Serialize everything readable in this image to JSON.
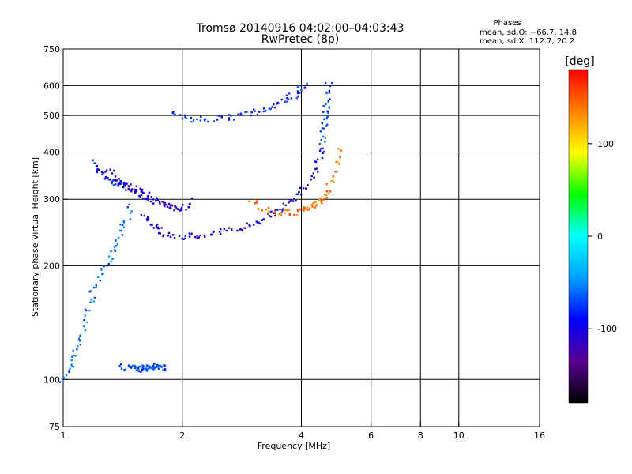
{
  "header": {
    "title": "Tromsø 20140916 04:02:00–04:03:43",
    "subtitle": "RwPretec (8p)",
    "phases_title": "Phases",
    "phases_o": "mean, sd,O: −66.7, 14.8",
    "phases_x": "mean, sd,X: 112.7, 20.2"
  },
  "chart_data": {
    "type": "scatter",
    "xlabel": "Frequency [MHz]",
    "ylabel": "Stationary phase Virtual Height [km]",
    "xscale": "log",
    "yscale": "log",
    "xlim": [
      1,
      16
    ],
    "ylim": [
      75,
      750
    ],
    "x_ticks": [
      1,
      2,
      4,
      6,
      8,
      10,
      16
    ],
    "y_ticks": [
      75,
      100,
      200,
      300,
      400,
      500,
      600,
      750
    ],
    "grid_x": [
      2,
      4,
      6,
      8,
      10
    ],
    "grid_y": [
      100,
      200,
      300,
      400,
      500,
      600
    ],
    "grid": true,
    "colorbar": {
      "label": "[deg]",
      "range": [
        -180,
        180
      ],
      "ticks": [
        100,
        0,
        -100
      ],
      "colors": [
        "#000000",
        "#5a0090",
        "#0000ff",
        "#00a0ff",
        "#00ffff",
        "#00ff00",
        "#ffff00",
        "#ff8000",
        "#ff0000"
      ]
    },
    "traces": [
      {
        "x": [
          1.0,
          1.05,
          1.1,
          1.15,
          1.2,
          1.28,
          1.35,
          1.42,
          1.5
        ],
        "y": [
          100,
          110,
          125,
          150,
          175,
          200,
          225,
          255,
          290
        ],
        "phase": -60
      },
      {
        "x": [
          1.2,
          1.25,
          1.3,
          1.38,
          1.45,
          1.55,
          1.65
        ],
        "y": [
          380,
          350,
          340,
          330,
          320,
          310,
          300
        ],
        "phase": -90
      },
      {
        "x": [
          1.6,
          1.7,
          1.8,
          2.0,
          2.2,
          2.5,
          2.8,
          3.1,
          3.4,
          3.7,
          4.0,
          4.3,
          4.5
        ],
        "y": [
          270,
          255,
          245,
          238,
          240,
          245,
          252,
          262,
          275,
          292,
          315,
          350,
          400
        ],
        "phase": -100
      },
      {
        "x": [
          1.9,
          2.1,
          2.4,
          2.7,
          3.0,
          3.3,
          3.6,
          3.9,
          4.1
        ],
        "y": [
          500,
          490,
          490,
          495,
          505,
          525,
          545,
          570,
          600
        ],
        "phase": -80
      },
      {
        "x": [
          4.5,
          4.55,
          4.6,
          4.65,
          4.7
        ],
        "y": [
          400,
          450,
          500,
          550,
          620
        ],
        "phase": -70
      },
      {
        "x": [
          3.0,
          3.3,
          3.6,
          3.9,
          4.1,
          4.3,
          4.5,
          4.7,
          4.9,
          5.0
        ],
        "y": [
          295,
          280,
          275,
          278,
          282,
          288,
          300,
          320,
          360,
          420
        ],
        "phase": 140
      },
      {
        "x": [
          1.3,
          1.4,
          1.5,
          1.6,
          1.7,
          1.8,
          1.9,
          2.0,
          2.1
        ],
        "y": [
          360,
          330,
          320,
          310,
          300,
          290,
          285,
          280,
          300
        ],
        "phase": -110
      },
      {
        "x": [
          1.4,
          1.5,
          1.55,
          1.6,
          1.65,
          1.7,
          1.75,
          1.8
        ],
        "y": [
          108,
          107,
          106,
          108,
          107,
          109,
          108,
          107
        ],
        "phase": -70
      }
    ]
  }
}
